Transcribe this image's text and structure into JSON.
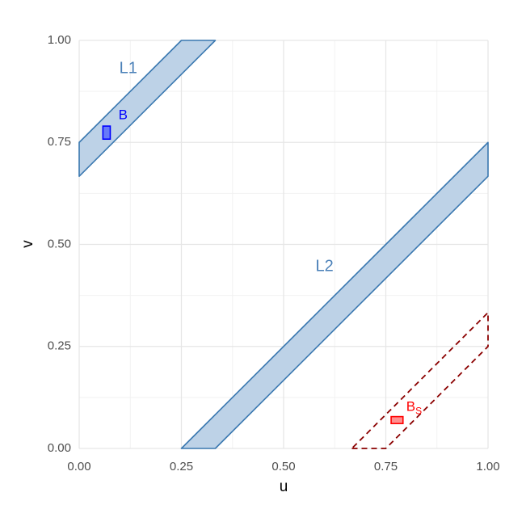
{
  "chart_data": {
    "type": "area",
    "xlabel": "u",
    "ylabel": "v",
    "xlim": [
      0,
      1
    ],
    "ylim": [
      0,
      1
    ],
    "x_ticks": [
      "0.00",
      "0.25",
      "0.50",
      "0.75",
      "1.00"
    ],
    "y_ticks": [
      "0.00",
      "0.25",
      "0.50",
      "0.75",
      "1.00"
    ],
    "grid": true,
    "colors": {
      "band_fill": "#bdd2e7",
      "band_stroke": "#3a78b0",
      "band_label": "#4a80b8",
      "box_B": "#0000ff",
      "box_Bs": "#ff0000",
      "dashed_region": "#8b0000"
    },
    "bands": [
      {
        "label": "L1",
        "polygon": [
          [
            0,
            0.667
          ],
          [
            0,
            0.75
          ],
          [
            0.25,
            1
          ],
          [
            0.333,
            1
          ]
        ],
        "label_at": [
          0.12,
          0.93
        ]
      },
      {
        "label": "L2",
        "polygon": [
          [
            0.25,
            0
          ],
          [
            0.333,
            0
          ],
          [
            1,
            0.667
          ],
          [
            1,
            0.75
          ]
        ],
        "label_at": [
          0.6,
          0.445
        ]
      }
    ],
    "dashed_region": {
      "polygon": [
        [
          0.667,
          0
        ],
        [
          0.75,
          0
        ],
        [
          1,
          0.25
        ],
        [
          1,
          0.333
        ]
      ]
    },
    "boxes": [
      {
        "name": "B",
        "label": "B",
        "x": [
          0.058,
          0.076
        ],
        "y": [
          0.758,
          0.79
        ],
        "label_at": [
          0.096,
          0.815
        ]
      },
      {
        "name": "Bs",
        "label": "B",
        "subscript": "S",
        "x": [
          0.763,
          0.792
        ],
        "y": [
          0.061,
          0.078
        ],
        "label_at": [
          0.8,
          0.1
        ]
      }
    ]
  }
}
